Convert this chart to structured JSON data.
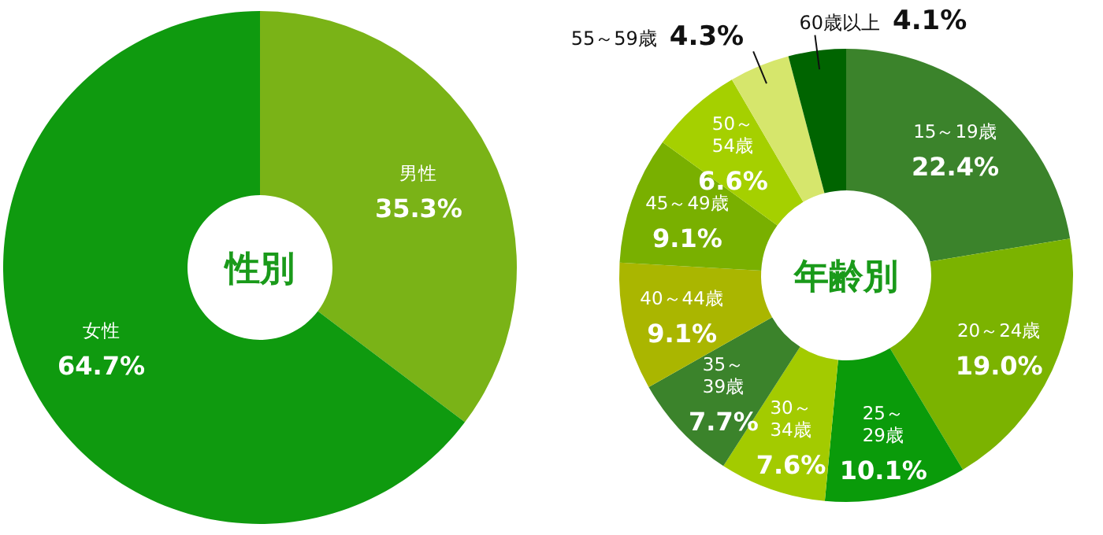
{
  "chart_data": [
    {
      "type": "donut",
      "title": "性別",
      "categories": [
        "男性",
        "女性"
      ],
      "values": [
        35.3,
        64.7
      ],
      "colors": [
        "#7ab317",
        "#0f9a0f"
      ],
      "value_labels": [
        "35.3%",
        "64.7%"
      ]
    },
    {
      "type": "donut",
      "title": "年齢別",
      "categories": [
        "15～19歳",
        "20～24歳",
        "25～29歳",
        "30～34歳",
        "35～39歳",
        "40～44歳",
        "45～49歳",
        "50～54歳",
        "55～59歳",
        "60歳以上"
      ],
      "values": [
        22.4,
        19.0,
        10.1,
        7.6,
        7.7,
        9.1,
        9.1,
        6.6,
        4.3,
        4.1
      ],
      "colors": [
        "#3b832b",
        "#7bb300",
        "#0a9b0a",
        "#a3cb00",
        "#3b832b",
        "#aab600",
        "#79b000",
        "#a5d000",
        "#d6e66c",
        "#006400"
      ],
      "value_labels": [
        "22.4%",
        "19.0%",
        "10.1%",
        "7.6%",
        "7.7%",
        "9.1%",
        "9.1%",
        "6.6%",
        "4.3%",
        "4.1%"
      ]
    }
  ]
}
